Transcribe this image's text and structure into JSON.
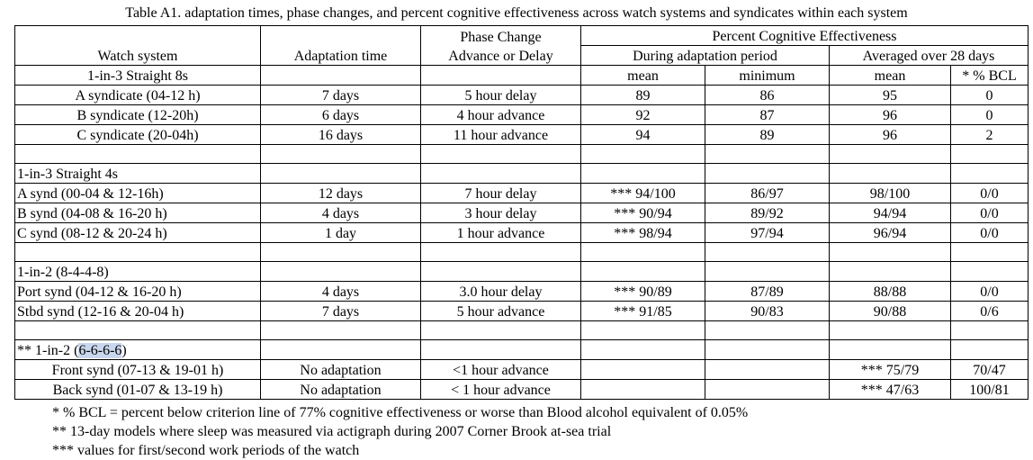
{
  "caption": "Table A1. adaptation times, phase changes, and percent cognitive effectiveness across watch systems and syndicates within each system",
  "header": {
    "phase_change": "Phase Change",
    "pce": "Percent Cognitive Effectiveness",
    "watch_system": "Watch system",
    "adaptation_time": "Adaptation time",
    "advance_or_delay": "Advance or Delay",
    "during": "During adaptation period",
    "averaged": "Averaged over 28 days",
    "mean1": "mean",
    "minimum": "minimum",
    "mean2": "mean",
    "bcl": "* % BCL"
  },
  "groups": {
    "g1": {
      "title": "1-in-3 Straight 8s",
      "rows": [
        [
          "A syndicate (04-12 h)",
          "7 days",
          "5 hour delay",
          "89",
          "86",
          "95",
          "0"
        ],
        [
          "B syndicate (12-20h)",
          "6 days",
          "4 hour advance",
          "92",
          "87",
          "96",
          "0"
        ],
        [
          "C syndicate (20-04h)",
          "16 days",
          "11 hour advance",
          "94",
          "89",
          "96",
          "2"
        ]
      ]
    },
    "g2": {
      "title": "1-in-3 Straight 4s",
      "rows": [
        [
          "A synd (00-04 & 12-16h)",
          "12 days",
          "7 hour delay",
          "*** 94/100",
          "86/97",
          "98/100",
          "0/0"
        ],
        [
          "B synd (04-08 & 16-20 h)",
          "4 days",
          "3 hour delay",
          "*** 90/94",
          "89/92",
          "94/94",
          "0/0"
        ],
        [
          "C synd (08-12 & 20-24 h)",
          "1 day",
          "1 hour advance",
          "*** 98/94",
          "97/94",
          "96/94",
          "0/0"
        ]
      ]
    },
    "g3": {
      "title": "1-in-2 (8-4-4-8)",
      "rows": [
        [
          "Port synd (04-12 & 16-20 h)",
          "4 days",
          "3.0 hour delay",
          "*** 90/89",
          "87/89",
          "88/88",
          "0/0"
        ],
        [
          "Stbd synd (12-16 & 20-04 h)",
          "7 days",
          "5 hour advance",
          "*** 91/85",
          "90/83",
          "90/88",
          "0/6"
        ]
      ]
    },
    "g4": {
      "title_prefix": "** 1-in-2  (",
      "title_highlight": "6-6-6-6",
      "title_suffix": ")",
      "rows": [
        [
          "Front synd (07-13 & 19-01 h)",
          "No adaptation",
          "<1 hour advance",
          "",
          "",
          "*** 75/79",
          "70/47"
        ],
        [
          "Back synd (01-07 & 13-19 h)",
          "No adaptation",
          "< 1 hour advance",
          "",
          "",
          "*** 47/63",
          "100/81"
        ]
      ]
    }
  },
  "notes": [
    "* % BCL = percent below criterion line of 77% cognitive effectiveness or worse than Blood alcohol equivalent of 0.05%",
    "** 13-day models where sleep was measured via actigraph during 2007 Corner Brook at-sea trial",
    "*** values for first/second work periods of the watch"
  ]
}
